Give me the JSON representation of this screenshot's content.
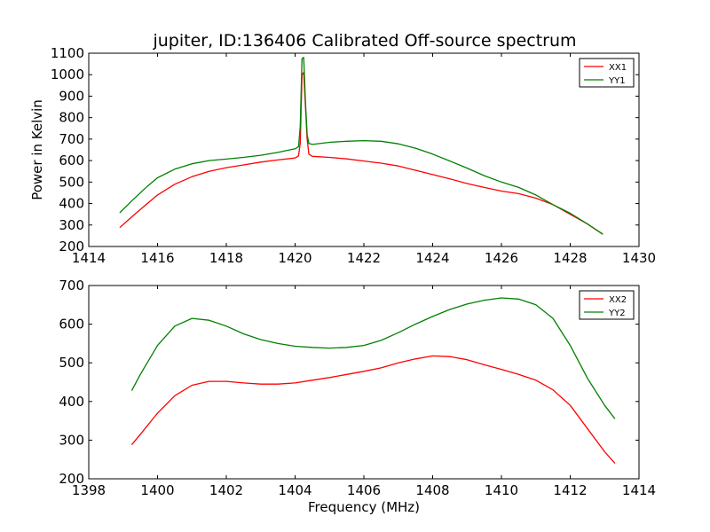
{
  "figure": {
    "title": "jupiter, ID:136406 Calibrated Off-source spectrum"
  },
  "chart_data": [
    {
      "type": "line",
      "title": "jupiter, ID:136406 Calibrated Off-source spectrum",
      "xlabel": "",
      "ylabel": "Power in Kelvin",
      "xlim": [
        1414,
        1430
      ],
      "ylim": [
        200,
        1100
      ],
      "xticks": [
        1414,
        1416,
        1418,
        1420,
        1422,
        1424,
        1426,
        1428,
        1430
      ],
      "yticks": [
        200,
        300,
        400,
        500,
        600,
        700,
        800,
        900,
        1000,
        1100
      ],
      "grid": false,
      "legend": "top-right",
      "series": [
        {
          "name": "XX1",
          "color": "#ff0000",
          "x": [
            1414.9,
            1415.3,
            1415.7,
            1416.0,
            1416.5,
            1417.0,
            1417.5,
            1418.0,
            1418.5,
            1419.0,
            1419.5,
            1420.0,
            1420.1,
            1420.15,
            1420.2,
            1420.25,
            1420.3,
            1420.35,
            1420.4,
            1420.5,
            1421.0,
            1421.5,
            1422.0,
            1422.5,
            1423.0,
            1423.5,
            1424.0,
            1424.5,
            1425.0,
            1425.5,
            1426.0,
            1426.5,
            1427.0,
            1427.5,
            1428.0,
            1428.5,
            1428.95
          ],
          "y": [
            288,
            345,
            400,
            440,
            490,
            525,
            550,
            567,
            580,
            593,
            603,
            612,
            622,
            680,
            1000,
            1010,
            860,
            700,
            630,
            620,
            615,
            608,
            598,
            588,
            575,
            555,
            535,
            515,
            493,
            475,
            458,
            446,
            425,
            395,
            350,
            305,
            257
          ]
        },
        {
          "name": "YY1",
          "color": "#008000",
          "x": [
            1414.9,
            1415.3,
            1415.7,
            1416.0,
            1416.5,
            1417.0,
            1417.5,
            1418.0,
            1418.5,
            1419.0,
            1419.5,
            1420.0,
            1420.1,
            1420.15,
            1420.2,
            1420.25,
            1420.3,
            1420.35,
            1420.4,
            1420.5,
            1421.0,
            1421.5,
            1422.0,
            1422.5,
            1423.0,
            1423.5,
            1424.0,
            1424.5,
            1425.0,
            1425.5,
            1426.0,
            1426.5,
            1427.0,
            1427.5,
            1428.0,
            1428.5,
            1428.95
          ],
          "y": [
            357,
            420,
            480,
            520,
            560,
            585,
            600,
            607,
            615,
            625,
            638,
            655,
            665,
            760,
            1075,
            1080,
            880,
            720,
            680,
            675,
            685,
            690,
            693,
            690,
            678,
            658,
            630,
            598,
            565,
            530,
            500,
            475,
            440,
            395,
            355,
            305,
            257
          ]
        }
      ]
    },
    {
      "type": "line",
      "title": "",
      "xlabel": "Frequency (MHz)",
      "ylabel": "",
      "xlim": [
        1398,
        1414
      ],
      "ylim": [
        200,
        700
      ],
      "xticks": [
        1398,
        1400,
        1402,
        1404,
        1406,
        1408,
        1410,
        1412,
        1414
      ],
      "yticks": [
        200,
        300,
        400,
        500,
        600,
        700
      ],
      "grid": false,
      "legend": "top-right",
      "series": [
        {
          "name": "XX2",
          "color": "#ff0000",
          "x": [
            1399.25,
            1399.5,
            1400.0,
            1400.5,
            1401.0,
            1401.5,
            1402.0,
            1402.5,
            1403.0,
            1403.5,
            1404.0,
            1404.5,
            1405.0,
            1405.5,
            1406.0,
            1406.5,
            1407.0,
            1407.5,
            1408.0,
            1408.5,
            1409.0,
            1409.5,
            1410.0,
            1410.5,
            1411.0,
            1411.5,
            1412.0,
            1412.5,
            1413.0,
            1413.3
          ],
          "y": [
            288,
            315,
            370,
            415,
            442,
            452,
            452,
            448,
            445,
            445,
            448,
            455,
            462,
            470,
            478,
            487,
            500,
            510,
            518,
            516,
            508,
            495,
            483,
            470,
            455,
            430,
            390,
            330,
            270,
            240
          ]
        },
        {
          "name": "YY2",
          "color": "#008000",
          "x": [
            1399.25,
            1399.5,
            1400.0,
            1400.5,
            1401.0,
            1401.5,
            1402.0,
            1402.5,
            1403.0,
            1403.5,
            1404.0,
            1404.5,
            1405.0,
            1405.5,
            1406.0,
            1406.5,
            1407.0,
            1407.5,
            1408.0,
            1408.5,
            1409.0,
            1409.5,
            1410.0,
            1410.5,
            1411.0,
            1411.5,
            1412.0,
            1412.5,
            1413.0,
            1413.3
          ],
          "y": [
            428,
            470,
            545,
            595,
            615,
            610,
            595,
            575,
            560,
            550,
            543,
            540,
            538,
            540,
            545,
            558,
            578,
            600,
            620,
            638,
            652,
            662,
            668,
            665,
            650,
            615,
            545,
            460,
            390,
            355
          ]
        }
      ]
    }
  ]
}
